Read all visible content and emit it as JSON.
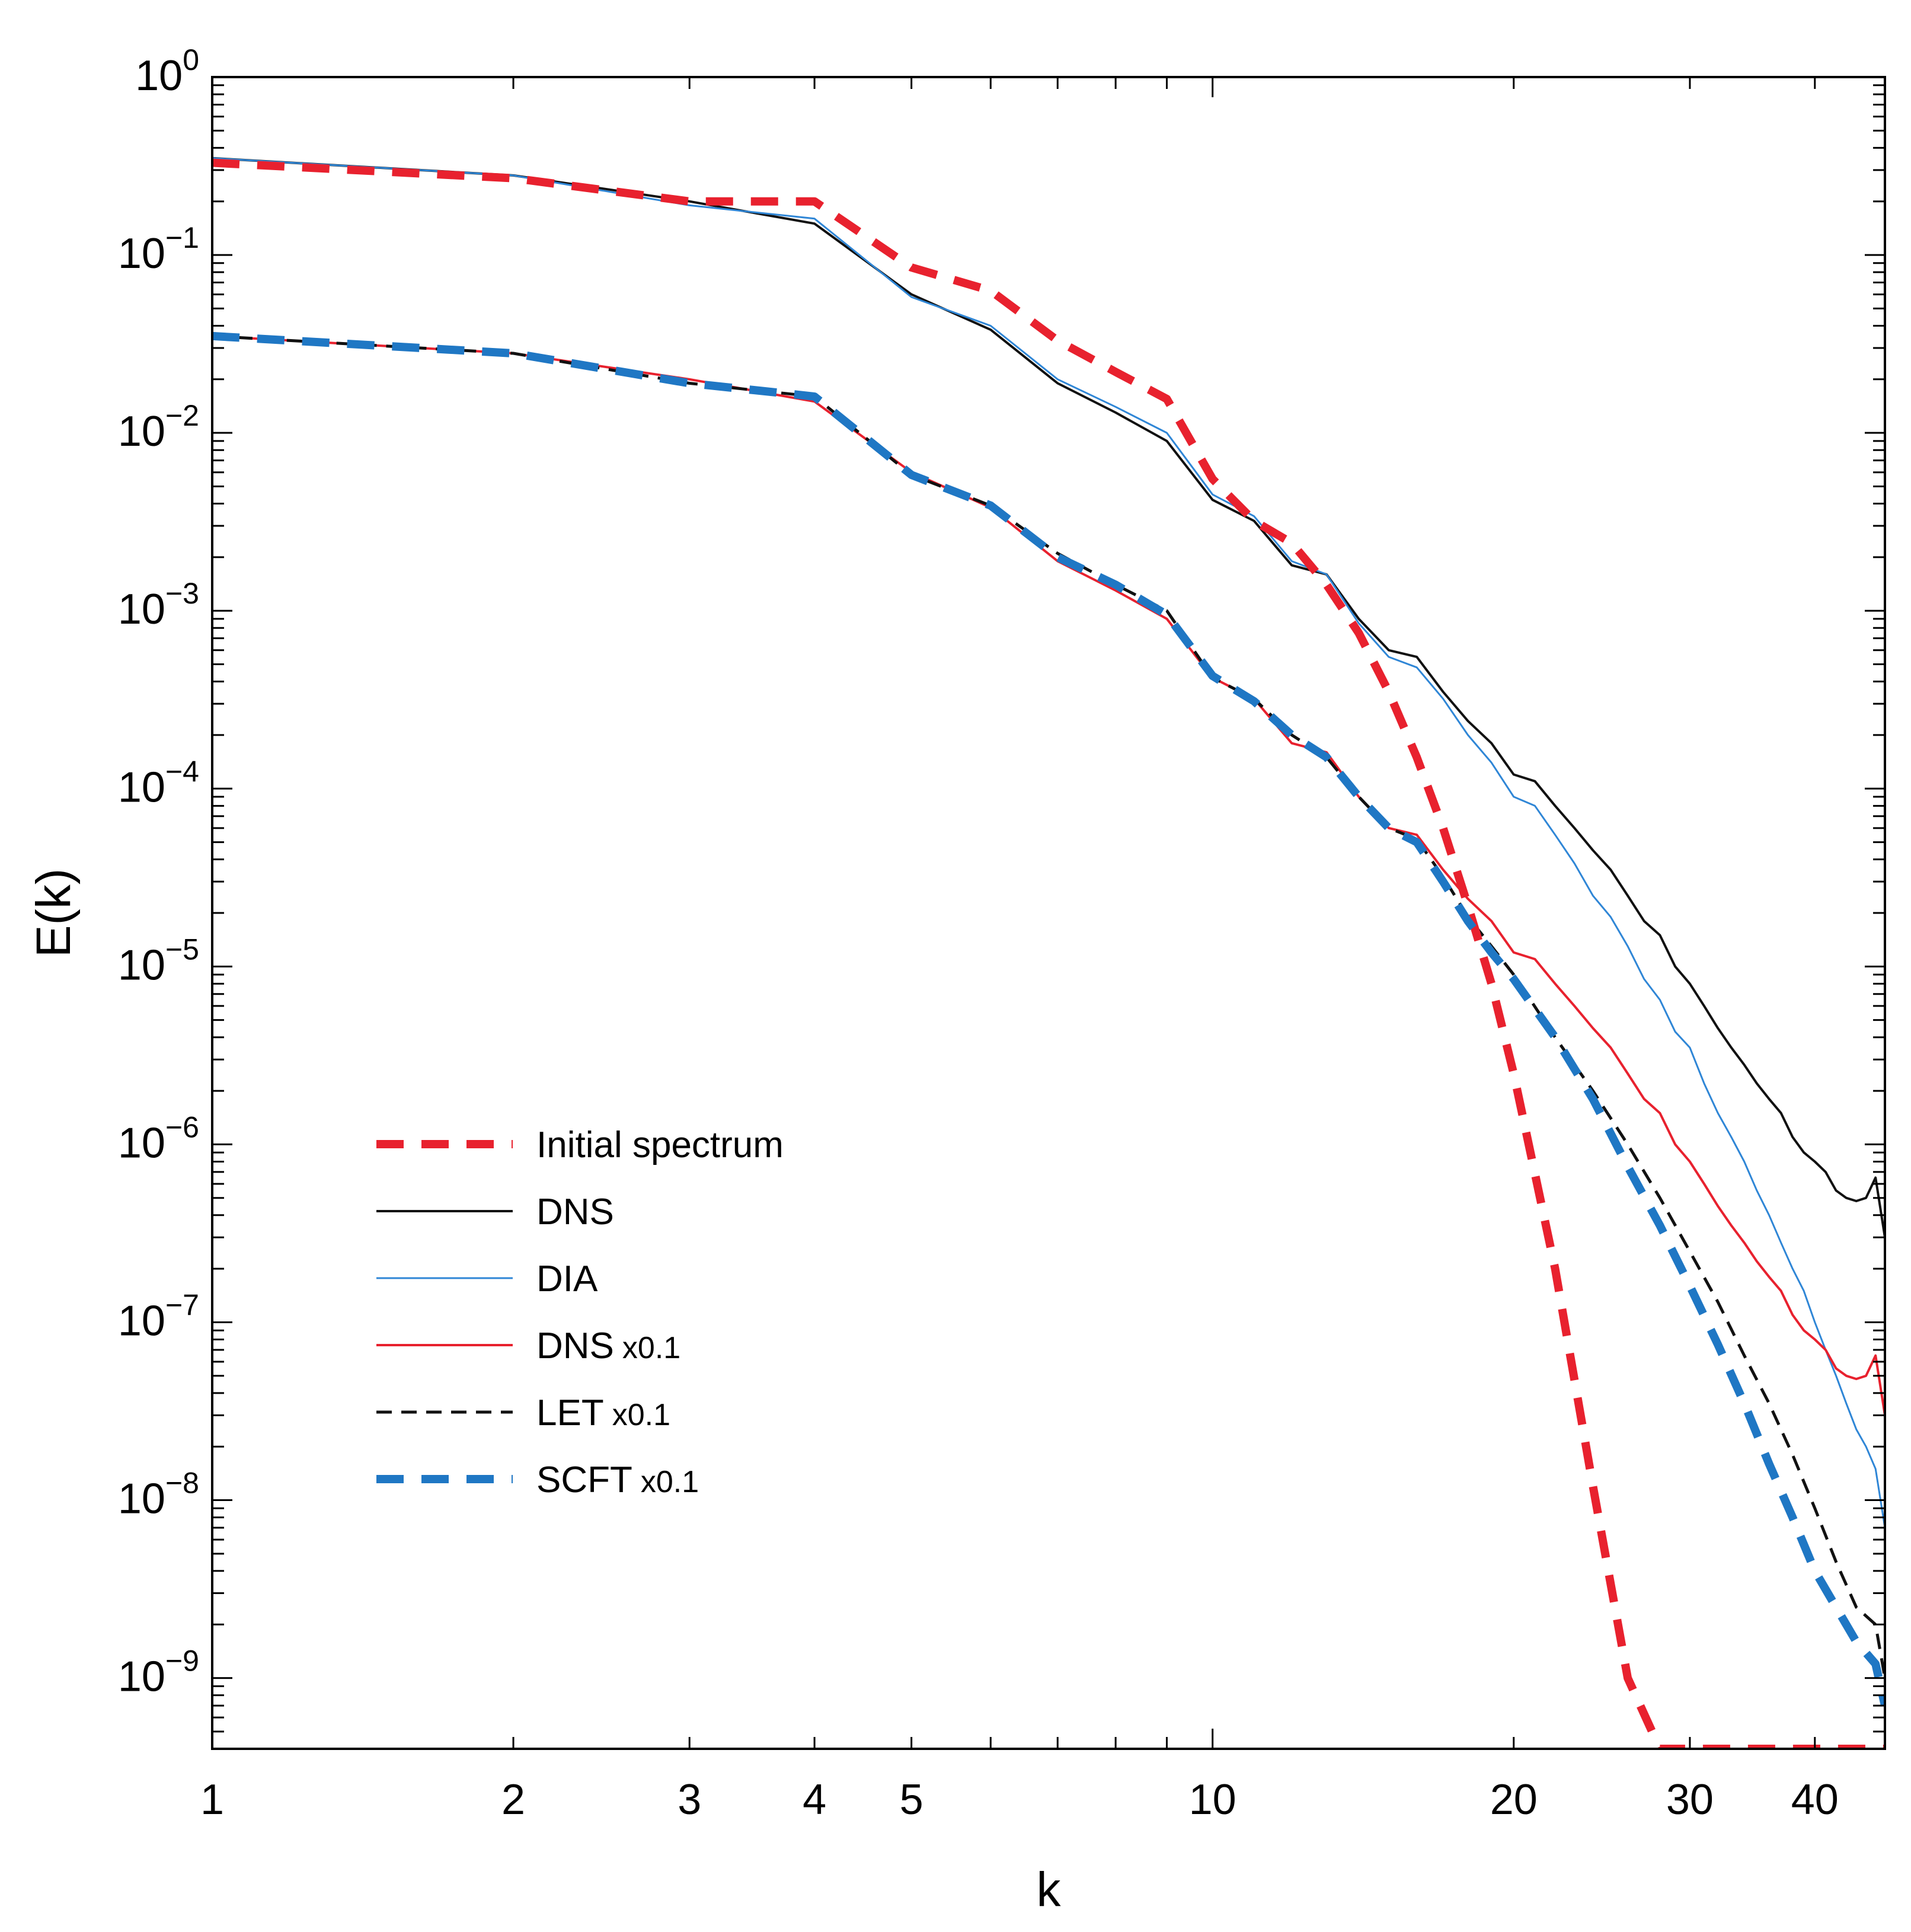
{
  "chart_data": {
    "type": "line",
    "title": "",
    "xlabel": "k",
    "ylabel": "E(k)",
    "xscale": "log",
    "yscale": "log",
    "xlim": [
      1,
      47
    ],
    "ylim": [
      4e-10,
      1
    ],
    "x_ticks": [
      {
        "value": 1,
        "label": "1"
      },
      {
        "value": 2,
        "label": "2"
      },
      {
        "value": 3,
        "label": "3"
      },
      {
        "value": 4,
        "label": "4"
      },
      {
        "value": 5,
        "label": "5"
      },
      {
        "value": 10,
        "label": "10"
      },
      {
        "value": 20,
        "label": "20"
      },
      {
        "value": 30,
        "label": "30"
      },
      {
        "value": 40,
        "label": "40"
      }
    ],
    "y_ticks": [
      {
        "value": 1,
        "base": "10",
        "exp": "0"
      },
      {
        "value": 0.1,
        "base": "10",
        "exp": "-1"
      },
      {
        "value": 0.01,
        "base": "10",
        "exp": "-2"
      },
      {
        "value": 0.001,
        "base": "10",
        "exp": "-3"
      },
      {
        "value": 0.0001,
        "base": "10",
        "exp": "-4"
      },
      {
        "value": 1e-05,
        "base": "10",
        "exp": "-5"
      },
      {
        "value": 1e-06,
        "base": "10",
        "exp": "-6"
      },
      {
        "value": 1e-07,
        "base": "10",
        "exp": "-7"
      },
      {
        "value": 1e-08,
        "base": "10",
        "exp": "-8"
      },
      {
        "value": 1e-09,
        "base": "10",
        "exp": "-9"
      }
    ],
    "legend_position": "bottom-left",
    "series": [
      {
        "name": "Initial spectrum",
        "suffix": "",
        "color": "#e8212e",
        "style": "dashed-thick",
        "x": [
          1,
          2,
          3,
          4,
          5,
          6,
          7,
          8,
          9,
          10,
          11,
          12,
          13,
          14,
          15,
          16,
          17,
          18,
          19,
          20,
          22,
          24,
          26,
          28,
          30,
          32,
          34,
          36,
          38,
          40,
          43,
          47
        ],
        "y": [
          0.33,
          0.27,
          0.2,
          0.2,
          0.085,
          0.063,
          0.033,
          0.022,
          0.0155,
          0.0055,
          0.0032,
          0.0024,
          0.0014,
          0.00075,
          0.00035,
          0.00015,
          6e-05,
          2.2e-05,
          8e-06,
          2.5e-06,
          2e-07,
          1.2e-08,
          1e-09,
          4e-10,
          4e-10,
          4e-10,
          4e-10,
          4e-10,
          4e-10,
          4e-10,
          4e-10,
          4e-10
        ]
      },
      {
        "name": "DNS",
        "suffix": "",
        "color": "#111111",
        "style": "solid",
        "x": [
          1,
          2,
          3,
          4,
          5,
          6,
          7,
          8,
          9,
          10,
          11,
          12,
          13,
          14,
          15,
          16,
          17,
          18,
          19,
          20,
          21,
          22,
          23,
          24,
          25,
          26,
          27,
          28,
          29,
          30,
          31,
          32,
          33,
          34,
          35,
          36,
          37,
          38,
          39,
          40,
          41,
          42,
          43,
          44,
          45,
          46,
          47
        ],
        "y": [
          0.35,
          0.28,
          0.2,
          0.15,
          0.06,
          0.038,
          0.019,
          0.013,
          0.009,
          0.0042,
          0.0032,
          0.0018,
          0.0016,
          0.0009,
          0.0006,
          0.00055,
          0.00035,
          0.00024,
          0.00018,
          0.00012,
          0.00011,
          8e-05,
          6e-05,
          4.5e-05,
          3.5e-05,
          2.5e-05,
          1.8e-05,
          1.5e-05,
          1e-05,
          8e-06,
          6e-06,
          4.5e-06,
          3.5e-06,
          2.8e-06,
          2.2e-06,
          1.8e-06,
          1.5e-06,
          1.1e-06,
          9e-07,
          8e-07,
          7e-07,
          5.5e-07,
          5e-07,
          4.8e-07,
          5e-07,
          6.5e-07,
          3e-07
        ]
      },
      {
        "name": "DIA",
        "suffix": "",
        "color": "#2f86d6",
        "style": "solid",
        "x": [
          1,
          2,
          3,
          4,
          5,
          6,
          7,
          8,
          9,
          10,
          11,
          12,
          13,
          14,
          15,
          16,
          17,
          18,
          19,
          20,
          21,
          22,
          23,
          24,
          25,
          26,
          27,
          28,
          29,
          30,
          31,
          32,
          33,
          34,
          35,
          36,
          37,
          38,
          39,
          40,
          41,
          42,
          43,
          44,
          45,
          46,
          47
        ],
        "y": [
          0.35,
          0.28,
          0.19,
          0.16,
          0.058,
          0.04,
          0.02,
          0.014,
          0.01,
          0.0045,
          0.0034,
          0.0019,
          0.0016,
          0.00085,
          0.00055,
          0.00048,
          0.00032,
          0.0002,
          0.00014,
          9e-05,
          8e-05,
          5.5e-05,
          3.8e-05,
          2.5e-05,
          1.9e-05,
          1.3e-05,
          8.5e-06,
          6.5e-06,
          4.3e-06,
          3.5e-06,
          2.2e-06,
          1.5e-06,
          1.1e-06,
          8e-07,
          5.5e-07,
          4e-07,
          2.8e-07,
          2e-07,
          1.5e-07,
          1e-07,
          7e-08,
          5e-08,
          3.5e-08,
          2.5e-08,
          2e-08,
          1.5e-08,
          7e-09
        ]
      },
      {
        "name": "DNS",
        "suffix": "x0.1",
        "color": "#e8212e",
        "style": "solid",
        "x": [
          1,
          2,
          3,
          4,
          5,
          6,
          7,
          8,
          9,
          10,
          11,
          12,
          13,
          14,
          15,
          16,
          17,
          18,
          19,
          20,
          21,
          22,
          23,
          24,
          25,
          26,
          27,
          28,
          29,
          30,
          31,
          32,
          33,
          34,
          35,
          36,
          37,
          38,
          39,
          40,
          41,
          42,
          43,
          44,
          45,
          46,
          47
        ],
        "y": [
          0.035,
          0.028,
          0.02,
          0.015,
          0.006,
          0.0038,
          0.0019,
          0.0013,
          0.0009,
          0.00042,
          0.00032,
          0.00018,
          0.00016,
          9e-05,
          6e-05,
          5.5e-05,
          3.5e-05,
          2.4e-05,
          1.8e-05,
          1.2e-05,
          1.1e-05,
          8e-06,
          6e-06,
          4.5e-06,
          3.5e-06,
          2.5e-06,
          1.8e-06,
          1.5e-06,
          1e-06,
          8e-07,
          6e-07,
          4.5e-07,
          3.5e-07,
          2.8e-07,
          2.2e-07,
          1.8e-07,
          1.5e-07,
          1.1e-07,
          9e-08,
          8e-08,
          7e-08,
          5.5e-08,
          5e-08,
          4.8e-08,
          5e-08,
          6.5e-08,
          3e-08
        ]
      },
      {
        "name": "LET",
        "suffix": "x0.1",
        "color": "#111111",
        "style": "dashed-thin",
        "x": [
          1,
          2,
          3,
          4,
          5,
          6,
          7,
          8,
          9,
          10,
          11,
          12,
          13,
          14,
          15,
          16,
          17,
          18,
          19,
          20,
          22,
          24,
          26,
          28,
          30,
          32,
          34,
          36,
          38,
          40,
          42,
          44,
          46,
          47
        ],
        "y": [
          0.035,
          0.028,
          0.019,
          0.016,
          0.0058,
          0.0039,
          0.0021,
          0.0014,
          0.001,
          0.00042,
          0.00032,
          0.0002,
          0.00015,
          9e-05,
          6e-05,
          5.2e-05,
          3.2e-05,
          1.9e-05,
          1.3e-05,
          9e-06,
          4e-06,
          2e-06,
          1e-06,
          5e-07,
          2.5e-07,
          1.3e-07,
          6.5e-08,
          3.5e-08,
          1.8e-08,
          9e-09,
          4.5e-09,
          2.5e-09,
          2e-09,
          1e-09
        ]
      },
      {
        "name": "SCFT",
        "suffix": "x0.1",
        "color": "#1f77c4",
        "style": "dashed-thick",
        "x": [
          1,
          2,
          3,
          4,
          5,
          6,
          7,
          8,
          9,
          10,
          11,
          12,
          13,
          14,
          15,
          16,
          17,
          18,
          19,
          20,
          22,
          24,
          26,
          28,
          30,
          32,
          34,
          36,
          38,
          40,
          42,
          44,
          46,
          47
        ],
        "y": [
          0.035,
          0.028,
          0.019,
          0.016,
          0.0058,
          0.0039,
          0.002,
          0.0014,
          0.00095,
          0.00043,
          0.00031,
          0.0002,
          0.00015,
          9e-05,
          6e-05,
          5e-05,
          3e-05,
          1.8e-05,
          1.2e-05,
          8.5e-06,
          4e-06,
          1.8e-06,
          7.5e-07,
          3.5e-07,
          1.6e-07,
          7.5e-08,
          3.5e-08,
          1.6e-08,
          8e-09,
          4e-09,
          2.5e-09,
          1.6e-09,
          1.2e-09,
          7e-10
        ]
      }
    ]
  }
}
